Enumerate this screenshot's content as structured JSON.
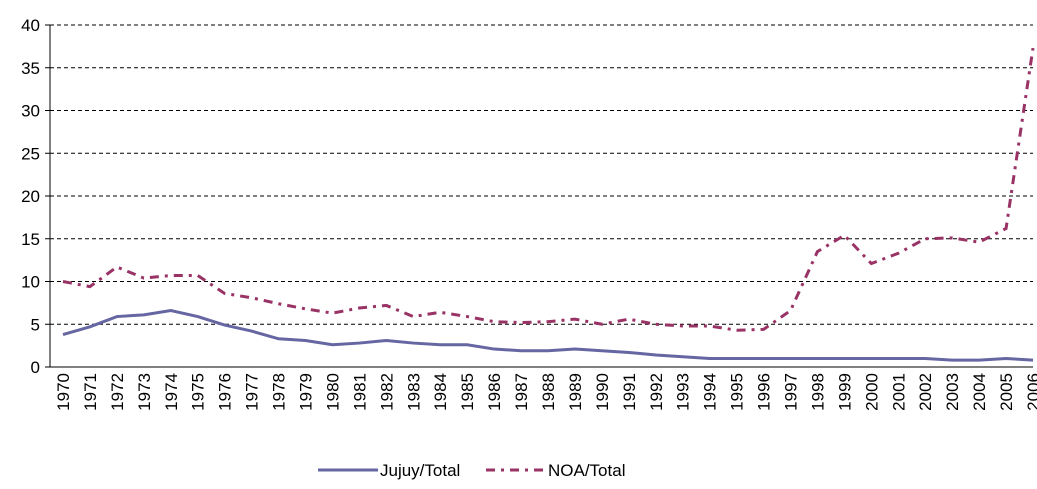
{
  "chart_data": {
    "type": "line",
    "categories": [
      "1970",
      "1971",
      "1972",
      "1973",
      "1974",
      "1975",
      "1976",
      "1977",
      "1978",
      "1979",
      "1980",
      "1981",
      "1982",
      "1983",
      "1984",
      "1985",
      "1986",
      "1987",
      "1988",
      "1989",
      "1990",
      "1991",
      "1992",
      "1993",
      "1994",
      "1995",
      "1996",
      "1997",
      "1998",
      "1999",
      "2000",
      "2001",
      "2002",
      "2003",
      "2004",
      "2005",
      "2006"
    ],
    "series": [
      {
        "name": "Jujuy/Total",
        "color": "#6666a3",
        "dash": "solid",
        "values": [
          3.8,
          4.7,
          5.9,
          6.1,
          6.6,
          5.9,
          4.9,
          4.2,
          3.3,
          3.1,
          2.6,
          2.8,
          3.1,
          2.8,
          2.6,
          2.6,
          2.1,
          1.9,
          1.9,
          2.1,
          1.9,
          1.7,
          1.4,
          1.2,
          1.0,
          1.0,
          1.0,
          1.0,
          1.0,
          1.0,
          1.0,
          1.0,
          1.0,
          0.8,
          0.8,
          1.0,
          0.8
        ]
      },
      {
        "name": "NOA/Total",
        "color": "#993366",
        "dash": "dashdot",
        "values": [
          10.0,
          9.4,
          11.7,
          10.4,
          10.7,
          10.7,
          8.6,
          8.1,
          7.4,
          6.8,
          6.3,
          6.9,
          7.2,
          5.9,
          6.4,
          5.9,
          5.3,
          5.2,
          5.3,
          5.6,
          5.0,
          5.6,
          5.0,
          4.8,
          4.8,
          4.3,
          4.4,
          6.6,
          13.5,
          15.4,
          12.1,
          13.3,
          15.0,
          15.1,
          14.6,
          16.2,
          37.3
        ]
      }
    ],
    "ylim": [
      0,
      40
    ],
    "yticks": [
      0,
      5,
      10,
      15,
      20,
      25,
      30,
      35,
      40
    ],
    "grid": true,
    "legend": "bottom"
  }
}
